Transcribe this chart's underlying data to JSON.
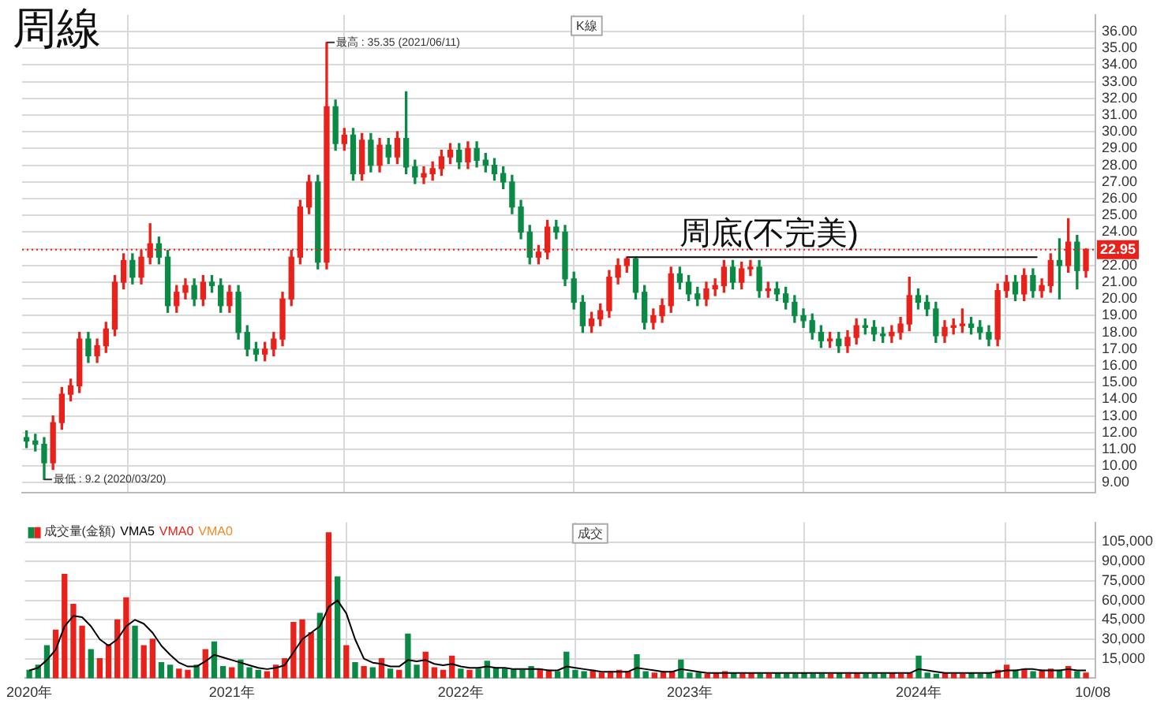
{
  "chart_data": [
    {
      "type": "candlestick",
      "title": "周線",
      "x": [
        "2020-02-21",
        "2020-03-06",
        "2020-03-20",
        "2020-04-03",
        "2020-04-17",
        "2020-05-01",
        "2020-05-15",
        "2020-05-29",
        "2020-06-12",
        "2020-06-26",
        "2020-07-10",
        "2020-07-24",
        "2020-08-07",
        "2020-08-21",
        "2020-09-04",
        "2020-09-18",
        "2020-10-02",
        "2020-10-16",
        "2020-10-30",
        "2020-11-13",
        "2020-11-27",
        "2020-12-11",
        "2020-12-25",
        "2021-01-08",
        "2021-01-22",
        "2021-02-05",
        "2021-02-19",
        "2021-03-05",
        "2021-03-19",
        "2021-04-02",
        "2021-04-16",
        "2021-04-30",
        "2021-05-14",
        "2021-05-28",
        "2021-06-11",
        "2021-06-25",
        "2021-07-09",
        "2021-07-23",
        "2021-08-06",
        "2021-08-20",
        "2021-09-03",
        "2021-09-17",
        "2021-10-01",
        "2021-10-15",
        "2021-10-29",
        "2021-11-12",
        "2021-11-26",
        "2021-12-10",
        "2021-12-24",
        "2022-01-07",
        "2022-01-21",
        "2022-02-04",
        "2022-02-18",
        "2022-03-04",
        "2022-03-18",
        "2022-04-01",
        "2022-04-15",
        "2022-04-29",
        "2022-05-13",
        "2022-05-27",
        "2022-06-10",
        "2022-06-24",
        "2022-07-08",
        "2022-07-22",
        "2022-08-05",
        "2022-08-19",
        "2022-09-02",
        "2022-09-16",
        "2022-09-30",
        "2022-10-14",
        "2022-10-28",
        "2022-11-11",
        "2022-11-25",
        "2022-12-09",
        "2022-12-23",
        "2023-01-06",
        "2023-01-20",
        "2023-02-03",
        "2023-02-17",
        "2023-03-03",
        "2023-03-17",
        "2023-03-31",
        "2023-04-14",
        "2023-04-28",
        "2023-05-12",
        "2023-05-26",
        "2023-06-09",
        "2023-06-23",
        "2023-07-07",
        "2023-07-21",
        "2023-08-04",
        "2023-08-18",
        "2023-09-01",
        "2023-09-15",
        "2023-09-29",
        "2023-10-13",
        "2023-10-27",
        "2023-11-10",
        "2023-11-24",
        "2023-12-08",
        "2023-12-22",
        "2024-01-05",
        "2024-01-19",
        "2024-02-02",
        "2024-02-16",
        "2024-03-01",
        "2024-03-15",
        "2024-03-29",
        "2024-04-12",
        "2024-04-26",
        "2024-05-10",
        "2024-05-24",
        "2024-06-07",
        "2024-06-21",
        "2024-07-05",
        "2024-07-19",
        "2024-08-02",
        "2024-08-16",
        "2024-08-30",
        "2024-09-13",
        "2024-09-27"
      ],
      "ohlc": [
        [
          11.7,
          12.1,
          11.1,
          11.5
        ],
        [
          11.5,
          11.9,
          10.9,
          11.3
        ],
        [
          11.3,
          11.7,
          9.2,
          10.2
        ],
        [
          10.2,
          13.0,
          9.8,
          12.6
        ],
        [
          12.6,
          14.7,
          12.2,
          14.3
        ],
        [
          14.3,
          15.2,
          13.9,
          14.8
        ],
        [
          14.8,
          18.0,
          14.4,
          17.6
        ],
        [
          17.6,
          18.0,
          16.2,
          16.6
        ],
        [
          16.6,
          17.6,
          16.2,
          17.2
        ],
        [
          17.2,
          18.6,
          16.8,
          18.2
        ],
        [
          18.2,
          21.4,
          17.8,
          21.0
        ],
        [
          21.0,
          22.7,
          20.6,
          22.3
        ],
        [
          22.3,
          22.7,
          20.9,
          21.3
        ],
        [
          21.3,
          22.9,
          20.9,
          22.5
        ],
        [
          22.5,
          24.5,
          22.1,
          23.3
        ],
        [
          23.3,
          23.7,
          22.1,
          22.5
        ],
        [
          22.5,
          22.9,
          19.2,
          19.6
        ],
        [
          19.6,
          20.8,
          19.2,
          20.4
        ],
        [
          20.4,
          21.2,
          20.0,
          20.8
        ],
        [
          20.8,
          21.2,
          19.6,
          20.0
        ],
        [
          20.0,
          21.4,
          19.6,
          21.0
        ],
        [
          21.0,
          21.4,
          20.4,
          20.8
        ],
        [
          20.8,
          21.2,
          19.2,
          19.6
        ],
        [
          19.6,
          20.8,
          19.2,
          20.4
        ],
        [
          20.4,
          20.8,
          17.6,
          18.0
        ],
        [
          18.0,
          18.4,
          16.6,
          17.0
        ],
        [
          17.0,
          17.4,
          16.3,
          16.7
        ],
        [
          16.7,
          17.4,
          16.3,
          17.0
        ],
        [
          17.0,
          18.0,
          16.6,
          17.6
        ],
        [
          17.6,
          20.4,
          17.2,
          20.0
        ],
        [
          20.0,
          22.9,
          19.6,
          22.5
        ],
        [
          22.5,
          25.9,
          22.1,
          25.5
        ],
        [
          25.5,
          27.4,
          25.1,
          27.0
        ],
        [
          27.0,
          27.4,
          21.8,
          22.2
        ],
        [
          22.2,
          35.35,
          21.8,
          31.5
        ],
        [
          31.5,
          31.9,
          28.9,
          29.3
        ],
        [
          29.3,
          30.2,
          28.9,
          29.8
        ],
        [
          29.8,
          30.2,
          27.1,
          27.5
        ],
        [
          27.5,
          29.9,
          27.1,
          29.5
        ],
        [
          29.5,
          29.9,
          27.6,
          28.0
        ],
        [
          28.0,
          29.6,
          27.6,
          29.2
        ],
        [
          29.2,
          29.6,
          28.1,
          28.5
        ],
        [
          28.5,
          30.0,
          28.1,
          29.6
        ],
        [
          29.6,
          32.4,
          27.5,
          27.9
        ],
        [
          27.9,
          28.3,
          26.9,
          27.3
        ],
        [
          27.3,
          27.9,
          26.9,
          27.5
        ],
        [
          27.5,
          28.2,
          27.1,
          27.8
        ],
        [
          27.8,
          28.9,
          27.4,
          28.5
        ],
        [
          28.5,
          29.3,
          28.1,
          28.9
        ],
        [
          28.9,
          29.3,
          27.8,
          28.2
        ],
        [
          28.2,
          29.4,
          27.8,
          29.0
        ],
        [
          29.0,
          29.4,
          27.9,
          28.3
        ],
        [
          28.3,
          28.7,
          27.6,
          28.0
        ],
        [
          28.0,
          28.4,
          27.1,
          27.5
        ],
        [
          27.5,
          27.9,
          26.6,
          27.0
        ],
        [
          27.0,
          27.4,
          25.1,
          25.5
        ],
        [
          25.5,
          25.9,
          23.6,
          24.0
        ],
        [
          24.0,
          24.4,
          22.1,
          22.5
        ],
        [
          22.5,
          23.2,
          22.1,
          22.8
        ],
        [
          22.8,
          24.7,
          22.4,
          24.3
        ],
        [
          24.3,
          24.7,
          23.6,
          24.0
        ],
        [
          24.0,
          24.4,
          20.8,
          21.2
        ],
        [
          21.2,
          21.6,
          19.4,
          19.8
        ],
        [
          19.8,
          20.2,
          18.0,
          18.4
        ],
        [
          18.4,
          19.2,
          18.0,
          18.8
        ],
        [
          18.8,
          19.7,
          18.4,
          19.3
        ],
        [
          19.3,
          21.7,
          18.9,
          21.3
        ],
        [
          21.3,
          22.4,
          20.9,
          22.0
        ],
        [
          22.0,
          22.5,
          21.6,
          22.4
        ],
        [
          22.4,
          22.5,
          20.0,
          20.4
        ],
        [
          20.4,
          20.8,
          18.2,
          18.6
        ],
        [
          18.6,
          19.4,
          18.2,
          19.0
        ],
        [
          19.0,
          20.0,
          18.6,
          19.6
        ],
        [
          19.6,
          21.9,
          19.2,
          21.5
        ],
        [
          21.5,
          21.9,
          20.6,
          21.0
        ],
        [
          21.0,
          21.4,
          19.9,
          20.3
        ],
        [
          20.3,
          20.7,
          19.6,
          20.0
        ],
        [
          20.0,
          21.0,
          19.6,
          20.6
        ],
        [
          20.6,
          21.2,
          20.2,
          20.8
        ],
        [
          20.8,
          22.3,
          20.4,
          21.9
        ],
        [
          21.9,
          22.3,
          20.6,
          21.0
        ],
        [
          21.0,
          22.2,
          20.6,
          21.8
        ],
        [
          21.8,
          22.3,
          21.4,
          21.9
        ],
        [
          21.9,
          22.3,
          20.1,
          20.5
        ],
        [
          20.5,
          21.0,
          20.1,
          20.6
        ],
        [
          20.6,
          21.0,
          19.9,
          20.3
        ],
        [
          20.3,
          20.7,
          19.4,
          19.8
        ],
        [
          19.8,
          20.2,
          18.6,
          19.0
        ],
        [
          19.0,
          19.4,
          18.3,
          18.7
        ],
        [
          18.7,
          19.1,
          17.6,
          18.0
        ],
        [
          18.0,
          18.4,
          17.1,
          17.5
        ],
        [
          17.5,
          18.0,
          17.1,
          17.6
        ],
        [
          17.6,
          18.0,
          16.8,
          17.2
        ],
        [
          17.2,
          18.1,
          16.8,
          17.7
        ],
        [
          17.7,
          18.8,
          17.3,
          18.4
        ],
        [
          18.4,
          18.8,
          17.9,
          18.3
        ],
        [
          18.3,
          18.7,
          17.5,
          17.9
        ],
        [
          17.9,
          18.3,
          17.4,
          17.8
        ],
        [
          17.8,
          18.4,
          17.4,
          18.0
        ],
        [
          18.0,
          18.9,
          17.6,
          18.5
        ],
        [
          18.5,
          21.3,
          18.1,
          20.2
        ],
        [
          20.2,
          20.6,
          19.4,
          19.8
        ],
        [
          19.8,
          20.2,
          19.0,
          19.4
        ],
        [
          19.4,
          19.8,
          17.4,
          17.8
        ],
        [
          17.8,
          18.7,
          17.4,
          18.3
        ],
        [
          18.3,
          18.8,
          17.9,
          18.4
        ],
        [
          18.4,
          19.4,
          18.0,
          18.5
        ],
        [
          18.5,
          18.9,
          17.9,
          18.3
        ],
        [
          18.3,
          18.7,
          17.6,
          18.0
        ],
        [
          18.0,
          18.4,
          17.2,
          17.6
        ],
        [
          17.6,
          20.9,
          17.2,
          20.5
        ],
        [
          20.5,
          21.4,
          20.1,
          21.0
        ],
        [
          21.0,
          21.4,
          19.9,
          20.3
        ],
        [
          20.3,
          21.8,
          19.9,
          21.4
        ],
        [
          21.4,
          21.8,
          20.1,
          20.5
        ],
        [
          20.5,
          21.2,
          20.1,
          20.8
        ],
        [
          20.8,
          22.7,
          20.4,
          22.3
        ],
        [
          22.3,
          23.6,
          20.0,
          22.0
        ],
        [
          22.0,
          24.8,
          21.6,
          23.4
        ],
        [
          23.4,
          23.8,
          20.6,
          21.7
        ],
        [
          21.7,
          23.0,
          21.3,
          22.95
        ]
      ],
      "colors": [
        "#0b8a45",
        "#0b8a45",
        "#0b8a45",
        "#e8221b",
        "#e8221b",
        "#e8221b",
        "#e8221b",
        "#0b8a45",
        "#e8221b",
        "#e8221b",
        "#e8221b",
        "#e8221b",
        "#0b8a45",
        "#e8221b",
        "#e8221b",
        "#0b8a45",
        "#0b8a45",
        "#e8221b",
        "#e8221b",
        "#0b8a45",
        "#e8221b",
        "#0b8a45",
        "#0b8a45",
        "#e8221b",
        "#0b8a45",
        "#0b8a45",
        "#0b8a45",
        "#e8221b",
        "#e8221b",
        "#e8221b",
        "#e8221b",
        "#e8221b",
        "#e8221b",
        "#0b8a45",
        "#e8221b",
        "#0b8a45",
        "#e8221b",
        "#0b8a45",
        "#e8221b",
        "#0b8a45",
        "#e8221b",
        "#0b8a45",
        "#e8221b",
        "#0b8a45",
        "#0b8a45",
        "#e8221b",
        "#e8221b",
        "#e8221b",
        "#e8221b",
        "#0b8a45",
        "#e8221b",
        "#0b8a45",
        "#0b8a45",
        "#0b8a45",
        "#0b8a45",
        "#0b8a45",
        "#0b8a45",
        "#0b8a45",
        "#e8221b",
        "#e8221b",
        "#0b8a45",
        "#0b8a45",
        "#0b8a45",
        "#0b8a45",
        "#e8221b",
        "#e8221b",
        "#e8221b",
        "#e8221b",
        "#e8221b",
        "#0b8a45",
        "#0b8a45",
        "#e8221b",
        "#e8221b",
        "#e8221b",
        "#0b8a45",
        "#0b8a45",
        "#0b8a45",
        "#e8221b",
        "#e8221b",
        "#e8221b",
        "#0b8a45",
        "#e8221b",
        "#e8221b",
        "#0b8a45",
        "#e8221b",
        "#0b8a45",
        "#0b8a45",
        "#0b8a45",
        "#0b8a45",
        "#0b8a45",
        "#0b8a45",
        "#e8221b",
        "#0b8a45",
        "#e8221b",
        "#e8221b",
        "#0b8a45",
        "#0b8a45",
        "#0b8a45",
        "#e8221b",
        "#e8221b",
        "#e8221b",
        "#0b8a45",
        "#0b8a45",
        "#0b8a45",
        "#e8221b",
        "#e8221b",
        "#e8221b",
        "#0b8a45",
        "#0b8a45",
        "#0b8a45",
        "#e8221b",
        "#e8221b",
        "#0b8a45",
        "#e8221b",
        "#0b8a45",
        "#e8221b",
        "#e8221b",
        "#0b8a45",
        "#e8221b",
        "#0b8a45",
        "#e8221b"
      ],
      "series": [
        {
          "type": "line",
          "color": "#000000",
          "x": [
            "2022-09-30",
            "2024-07-12"
          ],
          "values": [
            22.5,
            22.5
          ]
        }
      ],
      "xlim": [
        "2020-02-14",
        "2024-10-12"
      ],
      "xticks": [
        {
          "value": "2020-02-21",
          "label": null
        },
        {
          "value": "2021-01-08",
          "label": null
        },
        {
          "value": "2022-01-07",
          "label": null
        },
        {
          "value": "2023-01-06",
          "label": null
        },
        {
          "value": "2024-01-05",
          "label": null
        },
        {
          "value": "2024-10-08",
          "label": null
        }
      ],
      "ylim": [
        8.4,
        37
      ],
      "yticks": [
        {
          "value": 9,
          "label": "9.00"
        },
        {
          "value": 10,
          "label": "10.00"
        },
        {
          "value": 11,
          "label": "11.00"
        },
        {
          "value": 12,
          "label": "12.00"
        },
        {
          "value": 13,
          "label": "13.00"
        },
        {
          "value": 14,
          "label": "14.00"
        },
        {
          "value": 15,
          "label": "15.00"
        },
        {
          "value": 16,
          "label": "16.00"
        },
        {
          "value": 17,
          "label": "17.00"
        },
        {
          "value": 18,
          "label": "18.00"
        },
        {
          "value": 19,
          "label": "19.00"
        },
        {
          "value": 20,
          "label": "20.00"
        },
        {
          "value": 21,
          "label": "21.00"
        },
        {
          "value": 22,
          "label": "22.00"
        },
        {
          "value": 23,
          "label": null
        },
        {
          "value": 24,
          "label": "24.00"
        },
        {
          "value": 25,
          "label": "25.00"
        },
        {
          "value": 26,
          "label": "26.00"
        },
        {
          "value": 27,
          "label": "27.00"
        },
        {
          "value": 28,
          "label": "28.00"
        },
        {
          "value": 29,
          "label": "29.00"
        },
        {
          "value": 30,
          "label": "30.00"
        },
        {
          "value": 31,
          "label": "31.00"
        },
        {
          "value": 32,
          "label": "32.00"
        },
        {
          "value": 33,
          "label": "33.00"
        },
        {
          "value": 34,
          "label": "34.00"
        },
        {
          "value": 35,
          "label": "35.00"
        },
        {
          "value": 36,
          "label": "36.00"
        }
      ],
      "ref_lines": [
        {
          "axis": "y",
          "value": 22.95,
          "label": "22.95",
          "color": "#e8221b",
          "line_style": "dotted"
        }
      ],
      "annotations": [
        {
          "text": "最高 : 35.35 (2021/06/11)",
          "x": "2021-06-11",
          "y": 35.35
        },
        {
          "text": "最低 : 9.2 (2020/03/20)",
          "x": "2020-03-20",
          "y": 9.2
        },
        "周底(不完美)",
        "K線"
      ],
      "grid": true,
      "tick_labels": "y"
    },
    {
      "type": "bar",
      "x": [
        "2020-02-21",
        "2020-03-06",
        "2020-03-20",
        "2020-04-03",
        "2020-04-17",
        "2020-05-01",
        "2020-05-15",
        "2020-05-29",
        "2020-06-12",
        "2020-06-26",
        "2020-07-10",
        "2020-07-24",
        "2020-08-07",
        "2020-08-21",
        "2020-09-04",
        "2020-09-18",
        "2020-10-02",
        "2020-10-16",
        "2020-10-30",
        "2020-11-13",
        "2020-11-27",
        "2020-12-11",
        "2020-12-25",
        "2021-01-08",
        "2021-01-22",
        "2021-02-05",
        "2021-02-19",
        "2021-03-05",
        "2021-03-19",
        "2021-04-02",
        "2021-04-16",
        "2021-04-30",
        "2021-05-14",
        "2021-05-28",
        "2021-06-11",
        "2021-06-25",
        "2021-07-09",
        "2021-07-23",
        "2021-08-06",
        "2021-08-20",
        "2021-09-03",
        "2021-09-17",
        "2021-10-01",
        "2021-10-15",
        "2021-10-29",
        "2021-11-12",
        "2021-11-26",
        "2021-12-10",
        "2021-12-24",
        "2022-01-07",
        "2022-01-21",
        "2022-02-04",
        "2022-02-18",
        "2022-03-04",
        "2022-03-18",
        "2022-04-01",
        "2022-04-15",
        "2022-04-29",
        "2022-05-13",
        "2022-05-27",
        "2022-06-10",
        "2022-06-24",
        "2022-07-08",
        "2022-07-22",
        "2022-08-05",
        "2022-08-19",
        "2022-09-02",
        "2022-09-16",
        "2022-09-30",
        "2022-10-14",
        "2022-10-28",
        "2022-11-11",
        "2022-11-25",
        "2022-12-09",
        "2022-12-23",
        "2023-01-06",
        "2023-01-20",
        "2023-02-03",
        "2023-02-17",
        "2023-03-03",
        "2023-03-17",
        "2023-03-31",
        "2023-04-14",
        "2023-04-28",
        "2023-05-12",
        "2023-05-26",
        "2023-06-09",
        "2023-06-23",
        "2023-07-07",
        "2023-07-21",
        "2023-08-04",
        "2023-08-18",
        "2023-09-01",
        "2023-09-15",
        "2023-09-29",
        "2023-10-13",
        "2023-10-27",
        "2023-11-10",
        "2023-11-24",
        "2023-12-08",
        "2023-12-22",
        "2024-01-05",
        "2024-01-19",
        "2024-02-02",
        "2024-02-16",
        "2024-03-01",
        "2024-03-15",
        "2024-03-29",
        "2024-04-12",
        "2024-04-26",
        "2024-05-10",
        "2024-05-24",
        "2024-06-07",
        "2024-06-21",
        "2024-07-05",
        "2024-07-19",
        "2024-08-02",
        "2024-08-16",
        "2024-08-30",
        "2024-09-13",
        "2024-09-27"
      ],
      "series": [
        {
          "name": "成交量(金額)",
          "type": "bar",
          "values": [
            6000,
            10000,
            25000,
            37000,
            80000,
            57000,
            40000,
            22000,
            15000,
            26000,
            45000,
            62000,
            40000,
            25000,
            30000,
            12000,
            10000,
            7000,
            6000,
            10000,
            22000,
            28000,
            9000,
            8000,
            14000,
            8000,
            6000,
            5000,
            10000,
            15000,
            43000,
            45000,
            35000,
            50000,
            112000,
            78000,
            25000,
            12000,
            9000,
            8000,
            15000,
            7000,
            6000,
            34000,
            10000,
            20000,
            8000,
            6000,
            17000,
            7000,
            6000,
            7000,
            13000,
            8000,
            7000,
            7000,
            6000,
            9000,
            7000,
            6000,
            5000,
            20000,
            6000,
            5000,
            6000,
            4000,
            5000,
            6000,
            5000,
            18000,
            5000,
            4000,
            5000,
            5000,
            14000,
            4000,
            4000,
            3000,
            4000,
            5000,
            4000,
            3000,
            4000,
            3000,
            3000,
            4000,
            3000,
            3000,
            4000,
            3000,
            3000,
            3000,
            4000,
            3000,
            4000,
            3000,
            3000,
            3000,
            4000,
            3000,
            4000,
            17000,
            4000,
            3000,
            4000,
            3000,
            3000,
            4000,
            3000,
            4000,
            6000,
            10000,
            6000,
            7000,
            5000,
            6000,
            7000,
            6000,
            9000,
            5000,
            4000
          ],
          "colors": [
            "#0b8a45",
            "#0b8a45",
            "#0b8a45",
            "#e8221b",
            "#e8221b",
            "#e8221b",
            "#e8221b",
            "#0b8a45",
            "#e8221b",
            "#e8221b",
            "#e8221b",
            "#e8221b",
            "#0b8a45",
            "#e8221b",
            "#e8221b",
            "#0b8a45",
            "#0b8a45",
            "#e8221b",
            "#e8221b",
            "#0b8a45",
            "#e8221b",
            "#0b8a45",
            "#0b8a45",
            "#e8221b",
            "#0b8a45",
            "#0b8a45",
            "#0b8a45",
            "#e8221b",
            "#e8221b",
            "#e8221b",
            "#e8221b",
            "#e8221b",
            "#e8221b",
            "#0b8a45",
            "#e8221b",
            "#0b8a45",
            "#e8221b",
            "#0b8a45",
            "#e8221b",
            "#0b8a45",
            "#e8221b",
            "#0b8a45",
            "#e8221b",
            "#0b8a45",
            "#0b8a45",
            "#e8221b",
            "#e8221b",
            "#e8221b",
            "#e8221b",
            "#0b8a45",
            "#e8221b",
            "#0b8a45",
            "#0b8a45",
            "#0b8a45",
            "#0b8a45",
            "#0b8a45",
            "#0b8a45",
            "#0b8a45",
            "#e8221b",
            "#e8221b",
            "#0b8a45",
            "#0b8a45",
            "#0b8a45",
            "#0b8a45",
            "#e8221b",
            "#e8221b",
            "#e8221b",
            "#e8221b",
            "#e8221b",
            "#0b8a45",
            "#0b8a45",
            "#e8221b",
            "#e8221b",
            "#e8221b",
            "#0b8a45",
            "#0b8a45",
            "#0b8a45",
            "#e8221b",
            "#e8221b",
            "#e8221b",
            "#0b8a45",
            "#e8221b",
            "#e8221b",
            "#0b8a45",
            "#e8221b",
            "#0b8a45",
            "#0b8a45",
            "#0b8a45",
            "#0b8a45",
            "#0b8a45",
            "#0b8a45",
            "#e8221b",
            "#0b8a45",
            "#e8221b",
            "#e8221b",
            "#0b8a45",
            "#0b8a45",
            "#0b8a45",
            "#e8221b",
            "#e8221b",
            "#e8221b",
            "#0b8a45",
            "#0b8a45",
            "#0b8a45",
            "#e8221b",
            "#e8221b",
            "#e8221b",
            "#0b8a45",
            "#0b8a45",
            "#0b8a45",
            "#e8221b",
            "#e8221b",
            "#0b8a45",
            "#e8221b",
            "#0b8a45",
            "#e8221b",
            "#e8221b",
            "#0b8a45",
            "#e8221b",
            "#0b8a45",
            "#e8221b"
          ]
        },
        {
          "name": "VMA5",
          "type": "line",
          "color": "#000000",
          "values": [
            6000,
            8000,
            14000,
            22000,
            40000,
            48000,
            47000,
            40000,
            30000,
            25000,
            30000,
            40000,
            45000,
            42000,
            35000,
            25000,
            18000,
            12000,
            9000,
            9000,
            13000,
            18000,
            16000,
            14000,
            12000,
            10000,
            8000,
            7000,
            8000,
            10000,
            20000,
            30000,
            35000,
            40000,
            55000,
            60000,
            50000,
            30000,
            15000,
            12000,
            11000,
            9000,
            9000,
            14000,
            13000,
            14000,
            11000,
            10000,
            11000,
            9000,
            8000,
            8000,
            9000,
            8000,
            8000,
            7000,
            7000,
            7000,
            7000,
            6000,
            6000,
            9000,
            8000,
            7000,
            6000,
            5000,
            5000,
            5000,
            5000,
            8000,
            7000,
            6000,
            5000,
            5000,
            7000,
            6000,
            5000,
            4000,
            4000,
            4000,
            4000,
            4000,
            4000,
            4000,
            4000,
            4000,
            4000,
            4000,
            4000,
            4000,
            4000,
            4000,
            4000,
            4000,
            4000,
            4000,
            4000,
            4000,
            4000,
            4000,
            4000,
            7000,
            6000,
            5000,
            4000,
            4000,
            4000,
            4000,
            4000,
            4000,
            5000,
            6000,
            6000,
            7000,
            7000,
            6000,
            6000,
            6000,
            7000,
            6000,
            6000
          ]
        }
      ],
      "xlim": [
        "2020-02-14",
        "2024-10-12"
      ],
      "xticks": [
        {
          "value": "2020-02-21",
          "label": "2020年"
        },
        {
          "value": "2021-01-08",
          "label": "2021年"
        },
        {
          "value": "2022-01-07",
          "label": "2022年"
        },
        {
          "value": "2023-01-06",
          "label": "2023年"
        },
        {
          "value": "2024-01-05",
          "label": "2024年"
        },
        {
          "value": "2024-10-08",
          "label": "10/08"
        }
      ],
      "ylim": [
        0,
        120000
      ],
      "yticks": [
        {
          "value": 15000,
          "label": "15,000"
        },
        {
          "value": 30000,
          "label": "30,000"
        },
        {
          "value": 45000,
          "label": "45,000"
        },
        {
          "value": 60000,
          "label": "60,000"
        },
        {
          "value": 75000,
          "label": "75,000"
        },
        {
          "value": 90000,
          "label": "90,000"
        },
        {
          "value": 105000,
          "label": "105,000"
        }
      ],
      "annotations": [
        "VMA0",
        "VMA0",
        "成交"
      ],
      "grid": true,
      "legend": "top left",
      "marker": "none"
    }
  ]
}
